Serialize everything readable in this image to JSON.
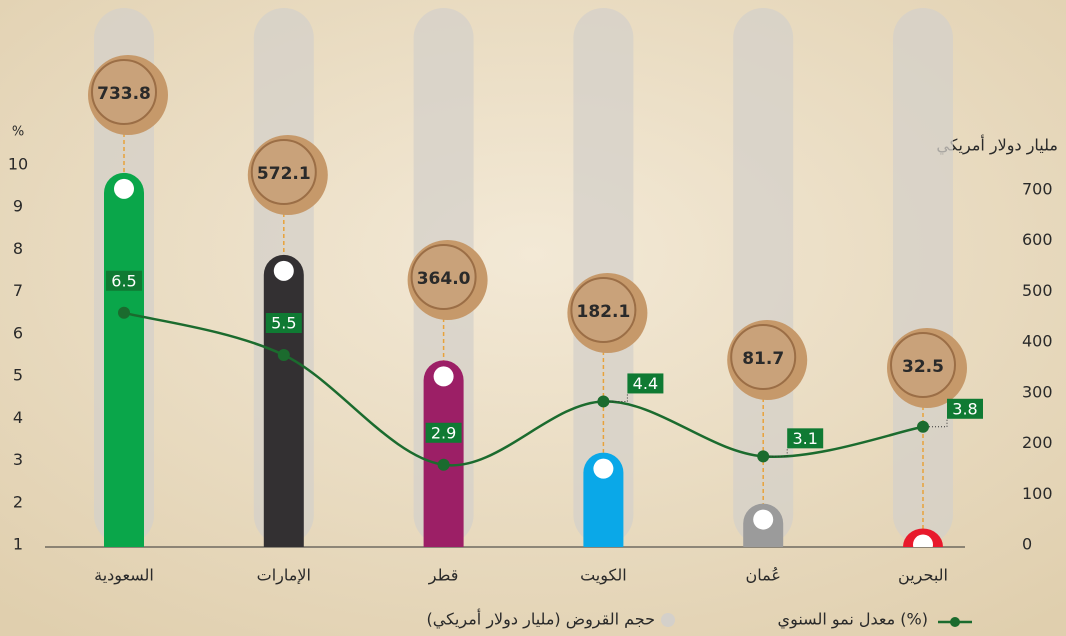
{
  "chart_data": {
    "type": "bar",
    "categories": [
      "السعودية",
      "الإمارات",
      "قطر",
      "الكويت",
      "عُمان",
      "البحرين"
    ],
    "series": [
      {
        "name": "حجم القروض (مليار دولار أمريكي)",
        "type": "bar",
        "axis": "y2",
        "color": "#d4d0ca",
        "colors": [
          "#0aa64a",
          "#333032",
          "#9c1f66",
          "#0aa8e8",
          "#9b9b9b",
          "#e8192c"
        ],
        "values": [
          733.8,
          572.1,
          364.0,
          182.1,
          81.7,
          32.5
        ],
        "value_labels": [
          "733.8",
          "572.1",
          "364.0",
          "182.1",
          "81.7",
          "32.5"
        ]
      },
      {
        "name": "معدل نمو السنوي (%)",
        "type": "line",
        "axis": "y",
        "color": "#1b6b2e",
        "values": [
          6.5,
          5.5,
          2.9,
          4.4,
          3.1,
          3.8
        ]
      }
    ],
    "ylabel": "%",
    "ylim": [
      1,
      10
    ],
    "yticks": [
      1,
      2,
      3,
      4,
      5,
      6,
      7,
      8,
      9,
      10
    ],
    "y2label": "مليار دولار أمريكي",
    "y2lim": [
      0,
      700
    ],
    "y2ticks": [
      0,
      100,
      200,
      300,
      400,
      500,
      600,
      700
    ]
  }
}
